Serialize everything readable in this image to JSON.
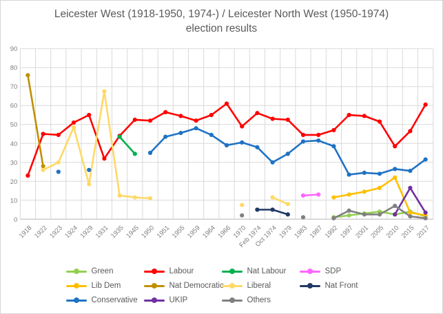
{
  "chart_data": {
    "type": "line",
    "title": "Leicester West (1918-1950, 1974-) / Leicester North West (1950-1974) election results",
    "categories": [
      "1918",
      "1922",
      "1923",
      "1924",
      "1929",
      "1931",
      "1935",
      "1945",
      "1950",
      "1951",
      "1955",
      "1959",
      "1964",
      "1966",
      "1970",
      "Feb 1974",
      "Oct 1974",
      "1979",
      "1983",
      "1987",
      "1992",
      "1997",
      "2001",
      "2005",
      "2010",
      "2015",
      "2017"
    ],
    "series": [
      {
        "name": "Green",
        "color": "#92d050",
        "values": [
          null,
          null,
          null,
          null,
          null,
          null,
          null,
          null,
          null,
          null,
          null,
          null,
          null,
          null,
          null,
          null,
          null,
          null,
          null,
          null,
          1,
          2,
          3,
          4,
          2.5,
          4,
          1.5
        ]
      },
      {
        "name": "Labour",
        "color": "#ff0000",
        "values": [
          23,
          45,
          44.5,
          51,
          55,
          32,
          44,
          52.5,
          52,
          56.5,
          54.5,
          52,
          55,
          61,
          49,
          56,
          53,
          52.5,
          44.5,
          44.5,
          47,
          55,
          54.5,
          51.5,
          38.5,
          46.5,
          60.5
        ]
      },
      {
        "name": "Nat Labour",
        "color": "#00b050",
        "values": [
          null,
          null,
          null,
          null,
          null,
          null,
          43.5,
          34.5,
          null,
          null,
          null,
          null,
          null,
          null,
          null,
          null,
          null,
          null,
          null,
          null,
          null,
          null,
          null,
          null,
          null,
          null,
          null
        ]
      },
      {
        "name": "SDP",
        "color": "#ff66ff",
        "values": [
          null,
          null,
          null,
          null,
          null,
          null,
          null,
          null,
          null,
          null,
          null,
          null,
          null,
          null,
          null,
          null,
          null,
          null,
          12.5,
          13,
          null,
          null,
          null,
          null,
          null,
          null,
          null
        ]
      },
      {
        "name": "Lib Dem",
        "color": "#ffc000",
        "values": [
          null,
          null,
          null,
          null,
          null,
          null,
          null,
          null,
          null,
          null,
          null,
          null,
          null,
          null,
          null,
          null,
          null,
          null,
          null,
          null,
          11.5,
          13,
          14.5,
          16.5,
          22,
          3.5,
          2
        ]
      },
      {
        "name": "Nat Democratic",
        "color": "#bf9000",
        "values": [
          76,
          28,
          null,
          null,
          null,
          null,
          null,
          null,
          null,
          null,
          null,
          null,
          null,
          null,
          null,
          null,
          null,
          null,
          null,
          null,
          null,
          null,
          null,
          null,
          null,
          null,
          null
        ]
      },
      {
        "name": "Liberal",
        "color": "#ffd966",
        "values": [
          null,
          26,
          30,
          48.5,
          18.5,
          67.5,
          12.5,
          11.5,
          11,
          null,
          null,
          null,
          null,
          null,
          7.5,
          null,
          11.5,
          8,
          null,
          null,
          null,
          null,
          null,
          null,
          null,
          null,
          null
        ]
      },
      {
        "name": "Nat Front",
        "color": "#203864",
        "values": [
          null,
          null,
          null,
          null,
          null,
          null,
          null,
          null,
          null,
          null,
          null,
          null,
          null,
          null,
          null,
          5,
          5,
          2.5,
          null,
          null,
          null,
          null,
          null,
          null,
          null,
          null,
          null
        ]
      },
      {
        "name": "Conservative",
        "color": "#1f72c4",
        "values": [
          null,
          null,
          25,
          null,
          26,
          null,
          null,
          null,
          35,
          43.5,
          45.5,
          48,
          44.5,
          39,
          40.5,
          38,
          30,
          34.5,
          41,
          41.5,
          38.5,
          23.5,
          24.5,
          24,
          26.5,
          25.5,
          31.5
        ]
      },
      {
        "name": "UKIP",
        "color": "#7030a0",
        "values": [
          null,
          null,
          null,
          null,
          null,
          null,
          null,
          null,
          null,
          null,
          null,
          null,
          null,
          null,
          null,
          null,
          null,
          null,
          null,
          null,
          null,
          null,
          null,
          null,
          2.5,
          16.5,
          3.5
        ]
      },
      {
        "name": "Others",
        "color": "#808080",
        "values": [
          null,
          null,
          null,
          null,
          null,
          null,
          null,
          null,
          null,
          null,
          null,
          null,
          null,
          null,
          2,
          null,
          null,
          null,
          1,
          null,
          0.5,
          4.5,
          2.5,
          2.5,
          7,
          1.5,
          0.5
        ]
      }
    ],
    "y_axis": {
      "min": 0,
      "max": 90,
      "step": 10,
      "tick_labels": [
        "0",
        "10",
        "20",
        "30",
        "40",
        "50",
        "60",
        "70",
        "80",
        "90"
      ]
    },
    "x_axis": {
      "labels_rotated_45deg": true
    },
    "grid": true,
    "legend_position": "bottom",
    "legend_columns": 4,
    "gridline_color": "#d9d9d9",
    "axis_line_color": "#bfbfbf",
    "text_color": "#7f7f7f",
    "title_color": "#595959"
  }
}
